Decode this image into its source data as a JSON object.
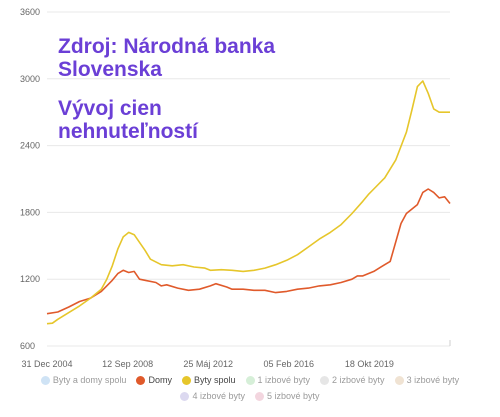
{
  "overlay": {
    "source": "Zdroj: Národná banka Slovenska",
    "title": "Vývoj cien nehnuteľností"
  },
  "colors": {
    "domy": "#e05a2b",
    "byty_spolu": "#e6c62b",
    "overlay_text": "#6b3fd6"
  },
  "chart_data": {
    "type": "line",
    "title": "",
    "xlabel": "",
    "ylabel": "",
    "ylim": [
      600,
      3600
    ],
    "yticks": [
      600,
      1200,
      1800,
      2400,
      3000,
      3600
    ],
    "x_tick_labels": [
      "31 Dec 2004",
      "12 Sep 2008",
      "25 Máj 2012",
      "05 Feb 2016",
      "18 Okt 2019"
    ],
    "x_start": "2004-12-31",
    "x_end": "2023-06-30",
    "grid": "horizontal",
    "legend_position": "bottom",
    "legend": [
      {
        "name": "Byty a domy spolu",
        "color": "#cfe3f5",
        "active": false
      },
      {
        "name": "Domy",
        "color": "#e05a2b",
        "active": true
      },
      {
        "name": "Byty spolu",
        "color": "#e6c62b",
        "active": true
      },
      {
        "name": "1 izbové byty",
        "color": "#d6efd8",
        "active": false
      },
      {
        "name": "2 izbové byty",
        "color": "#e6e6e6",
        "active": false
      },
      {
        "name": "3 izbové byty",
        "color": "#f0e3d3",
        "active": false
      },
      {
        "name": "4 izbové byty",
        "color": "#dcd9f0",
        "active": false
      },
      {
        "name": "5 izbové byty",
        "color": "#f3d6df",
        "active": false
      }
    ],
    "series": [
      {
        "name": "Domy",
        "color": "#e05a2b",
        "points": [
          [
            "2004-12-31",
            890
          ],
          [
            "2005-06-30",
            905
          ],
          [
            "2005-12-31",
            950
          ],
          [
            "2006-06-30",
            1000
          ],
          [
            "2006-12-31",
            1030
          ],
          [
            "2007-06-30",
            1090
          ],
          [
            "2007-12-31",
            1190
          ],
          [
            "2008-03-31",
            1250
          ],
          [
            "2008-06-30",
            1280
          ],
          [
            "2008-09-30",
            1260
          ],
          [
            "2008-12-31",
            1270
          ],
          [
            "2009-03-31",
            1200
          ],
          [
            "2009-06-30",
            1190
          ],
          [
            "2009-12-31",
            1170
          ],
          [
            "2010-03-31",
            1140
          ],
          [
            "2010-06-30",
            1150
          ],
          [
            "2010-12-31",
            1120
          ],
          [
            "2011-06-30",
            1100
          ],
          [
            "2011-12-31",
            1110
          ],
          [
            "2012-06-30",
            1140
          ],
          [
            "2012-09-30",
            1160
          ],
          [
            "2013-03-31",
            1130
          ],
          [
            "2013-06-30",
            1110
          ],
          [
            "2013-12-31",
            1110
          ],
          [
            "2014-06-30",
            1100
          ],
          [
            "2014-12-31",
            1100
          ],
          [
            "2015-06-30",
            1080
          ],
          [
            "2015-12-31",
            1090
          ],
          [
            "2016-06-30",
            1110
          ],
          [
            "2016-12-31",
            1120
          ],
          [
            "2017-06-30",
            1140
          ],
          [
            "2017-12-31",
            1150
          ],
          [
            "2018-06-30",
            1170
          ],
          [
            "2018-12-31",
            1200
          ],
          [
            "2019-03-31",
            1230
          ],
          [
            "2019-06-30",
            1230
          ],
          [
            "2019-12-31",
            1270
          ],
          [
            "2020-06-30",
            1330
          ],
          [
            "2020-09-30",
            1360
          ],
          [
            "2021-03-31",
            1700
          ],
          [
            "2021-06-30",
            1790
          ],
          [
            "2021-12-31",
            1870
          ],
          [
            "2022-03-31",
            1980
          ],
          [
            "2022-06-30",
            2010
          ],
          [
            "2022-09-30",
            1980
          ],
          [
            "2022-12-31",
            1930
          ],
          [
            "2023-03-31",
            1940
          ],
          [
            "2023-06-30",
            1880
          ]
        ]
      },
      {
        "name": "Byty spolu",
        "color": "#e6c62b",
        "points": [
          [
            "2004-12-31",
            800
          ],
          [
            "2005-03-31",
            805
          ],
          [
            "2005-06-30",
            840
          ],
          [
            "2005-12-31",
            900
          ],
          [
            "2006-06-30",
            960
          ],
          [
            "2006-12-31",
            1030
          ],
          [
            "2007-06-30",
            1110
          ],
          [
            "2007-09-30",
            1200
          ],
          [
            "2007-12-31",
            1320
          ],
          [
            "2008-03-31",
            1470
          ],
          [
            "2008-06-30",
            1580
          ],
          [
            "2008-09-30",
            1620
          ],
          [
            "2008-12-31",
            1600
          ],
          [
            "2009-06-30",
            1460
          ],
          [
            "2009-09-30",
            1380
          ],
          [
            "2010-03-31",
            1330
          ],
          [
            "2010-09-30",
            1320
          ],
          [
            "2011-03-31",
            1330
          ],
          [
            "2011-09-30",
            1310
          ],
          [
            "2012-03-31",
            1300
          ],
          [
            "2012-06-30",
            1280
          ],
          [
            "2012-12-31",
            1285
          ],
          [
            "2013-06-30",
            1280
          ],
          [
            "2013-12-31",
            1270
          ],
          [
            "2014-06-30",
            1280
          ],
          [
            "2014-12-31",
            1300
          ],
          [
            "2015-06-30",
            1330
          ],
          [
            "2015-12-31",
            1370
          ],
          [
            "2016-06-30",
            1420
          ],
          [
            "2016-12-31",
            1490
          ],
          [
            "2017-06-30",
            1560
          ],
          [
            "2017-12-31",
            1620
          ],
          [
            "2018-06-30",
            1690
          ],
          [
            "2018-12-31",
            1790
          ],
          [
            "2019-06-30",
            1900
          ],
          [
            "2019-09-30",
            1960
          ],
          [
            "2019-12-31",
            2010
          ],
          [
            "2020-06-30",
            2110
          ],
          [
            "2020-12-31",
            2270
          ],
          [
            "2021-06-30",
            2520
          ],
          [
            "2021-09-30",
            2720
          ],
          [
            "2021-12-31",
            2930
          ],
          [
            "2022-03-31",
            2980
          ],
          [
            "2022-06-30",
            2870
          ],
          [
            "2022-09-30",
            2730
          ],
          [
            "2022-12-31",
            2700
          ],
          [
            "2023-06-30",
            2700
          ]
        ]
      }
    ]
  }
}
